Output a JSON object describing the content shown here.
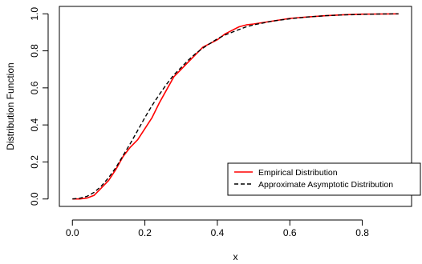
{
  "chart_data": {
    "type": "line",
    "title": "",
    "xlabel": "x",
    "ylabel": "Distribution Function",
    "xlim": [
      -0.036,
      0.936
    ],
    "ylim": [
      -0.04,
      1.04
    ],
    "x_ticks": [
      0.0,
      0.2,
      0.4,
      0.6,
      0.8
    ],
    "x_tick_labels": [
      "0.0",
      "0.2",
      "0.4",
      "0.6",
      "0.8"
    ],
    "y_ticks": [
      0.0,
      0.2,
      0.4,
      0.6,
      0.8,
      1.0
    ],
    "y_tick_labels": [
      "0.0",
      "0.2",
      "0.4",
      "0.6",
      "0.8",
      "1.0"
    ],
    "grid": false,
    "legend_position": "bottom-right",
    "series": [
      {
        "name": "Empirical Distribution",
        "color": "#ff0000",
        "line_style": "solid",
        "x": [
          0.0,
          0.02,
          0.04,
          0.06,
          0.08,
          0.1,
          0.12,
          0.14,
          0.16,
          0.18,
          0.2,
          0.22,
          0.24,
          0.26,
          0.28,
          0.3,
          0.32,
          0.34,
          0.36,
          0.38,
          0.4,
          0.42,
          0.44,
          0.46,
          0.48,
          0.5,
          0.55,
          0.6,
          0.65,
          0.7,
          0.75,
          0.8,
          0.85,
          0.9
        ],
        "y": [
          0.0,
          0.0,
          0.005,
          0.02,
          0.06,
          0.1,
          0.16,
          0.23,
          0.28,
          0.32,
          0.38,
          0.44,
          0.52,
          0.59,
          0.66,
          0.7,
          0.74,
          0.78,
          0.82,
          0.84,
          0.86,
          0.89,
          0.91,
          0.93,
          0.94,
          0.945,
          0.96,
          0.975,
          0.983,
          0.99,
          0.995,
          0.998,
          0.999,
          1.0
        ]
      },
      {
        "name": "Approximate Asymptotic Distribution",
        "color": "#000000",
        "line_style": "dashed",
        "x": [
          0.0,
          0.02,
          0.04,
          0.06,
          0.08,
          0.1,
          0.12,
          0.14,
          0.16,
          0.18,
          0.2,
          0.22,
          0.24,
          0.26,
          0.28,
          0.3,
          0.32,
          0.34,
          0.36,
          0.38,
          0.4,
          0.42,
          0.44,
          0.46,
          0.48,
          0.5,
          0.55,
          0.6,
          0.65,
          0.7,
          0.75,
          0.8,
          0.85,
          0.9
        ],
        "y": [
          0.0,
          0.004,
          0.014,
          0.036,
          0.07,
          0.115,
          0.17,
          0.235,
          0.3,
          0.37,
          0.44,
          0.505,
          0.565,
          0.62,
          0.67,
          0.71,
          0.75,
          0.785,
          0.815,
          0.84,
          0.865,
          0.885,
          0.9,
          0.915,
          0.93,
          0.94,
          0.96,
          0.973,
          0.983,
          0.99,
          0.994,
          0.997,
          0.999,
          1.0
        ]
      }
    ]
  }
}
